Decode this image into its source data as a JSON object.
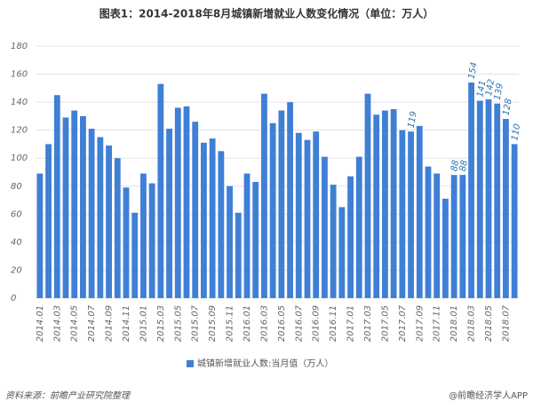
{
  "chart_data": {
    "type": "bar",
    "title": "图表1：2014-2018年8月城镇新增就业人数变化情况（单位：万人）",
    "categories": [
      "2014.01",
      null,
      "2014.03",
      null,
      "2014.05",
      null,
      "2014.07",
      null,
      "2014.09",
      null,
      "2014.11",
      null,
      "2015.01",
      null,
      "2015.03",
      null,
      "2015.05",
      null,
      "2015.07",
      null,
      "2015.09",
      null,
      "2015.11",
      null,
      "2016.01",
      null,
      "2016.03",
      null,
      "2016.05",
      null,
      "2016.07",
      null,
      "2016.09",
      null,
      "2016.11",
      null,
      "2017.01",
      null,
      "2017.03",
      null,
      "2017.05",
      null,
      "2017.07",
      null,
      "2017.09",
      null,
      "2017.11",
      null,
      "2018.01",
      null,
      "2018.03",
      null,
      "2018.05",
      null,
      "2018.07",
      null
    ],
    "series": [
      {
        "name": "城镇新增就业人数:当月值（万人）",
        "color": "#3f7fd6",
        "values": [
          89,
          110,
          145,
          129,
          134,
          130,
          121,
          115,
          109,
          100,
          79,
          61,
          89,
          82,
          153,
          121,
          136,
          137,
          126,
          111,
          114,
          105,
          80,
          61,
          89,
          83,
          146,
          125,
          134,
          140,
          118,
          113,
          119,
          101,
          81,
          65,
          87,
          101,
          146,
          131,
          134,
          135,
          120,
          119,
          123,
          94,
          89,
          71,
          88,
          88,
          154,
          141,
          142,
          139,
          128,
          110
        ],
        "value_labels": [
          null,
          null,
          null,
          null,
          null,
          null,
          null,
          null,
          null,
          null,
          null,
          null,
          null,
          null,
          null,
          null,
          null,
          null,
          null,
          null,
          null,
          null,
          null,
          null,
          null,
          null,
          null,
          null,
          null,
          null,
          null,
          null,
          null,
          null,
          null,
          null,
          null,
          null,
          null,
          null,
          null,
          null,
          null,
          "119",
          null,
          null,
          null,
          null,
          "88",
          "88",
          "154",
          "141",
          "142",
          "139",
          "128",
          "110"
        ]
      }
    ],
    "ylim": [
      0,
      180
    ],
    "yticks": [
      0,
      20,
      40,
      60,
      80,
      100,
      120,
      140,
      160,
      180
    ],
    "grid": true,
    "source": "资料来源：前瞻产业研究院整理",
    "watermark": "@前瞻经济学人APP"
  }
}
